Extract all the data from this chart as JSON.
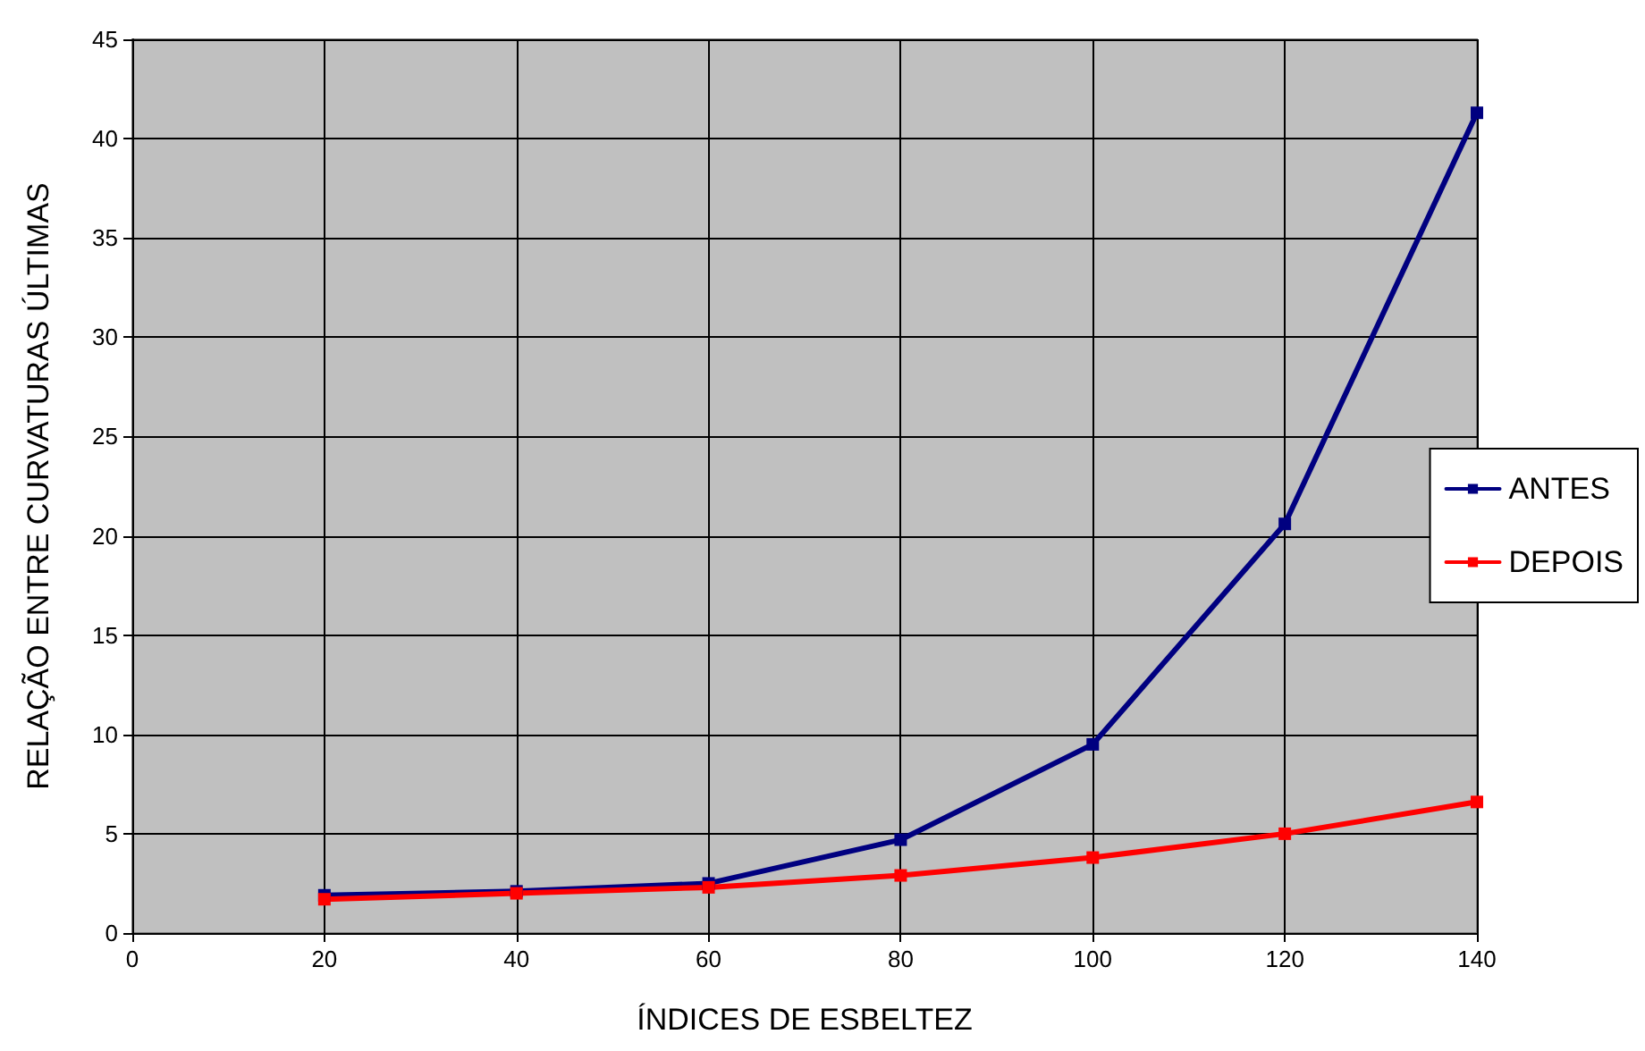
{
  "chart_data": {
    "type": "line",
    "xlabel": "ÍNDICES DE ESBELTEZ",
    "ylabel": "RELAÇÃO ENTRE CURVATURAS ÚLTIMAS",
    "x": [
      20,
      40,
      60,
      80,
      100,
      120,
      140
    ],
    "series": [
      {
        "name": "ANTES",
        "color": "#000080",
        "values": [
          1.9,
          2.1,
          2.5,
          4.7,
          9.5,
          20.6,
          41.3
        ]
      },
      {
        "name": "DEPOIS",
        "color": "#ff0000",
        "values": [
          1.7,
          2.0,
          2.3,
          2.9,
          3.8,
          5.0,
          6.6
        ]
      }
    ],
    "xlim": [
      0,
      140
    ],
    "xticks": [
      0,
      20,
      40,
      60,
      80,
      100,
      120,
      140
    ],
    "ylim": [
      0,
      45
    ],
    "yticks": [
      0,
      5,
      10,
      15,
      20,
      25,
      30,
      35,
      40,
      45
    ],
    "grid": true,
    "legend": "right",
    "marker": "square",
    "line_style": "solid"
  }
}
